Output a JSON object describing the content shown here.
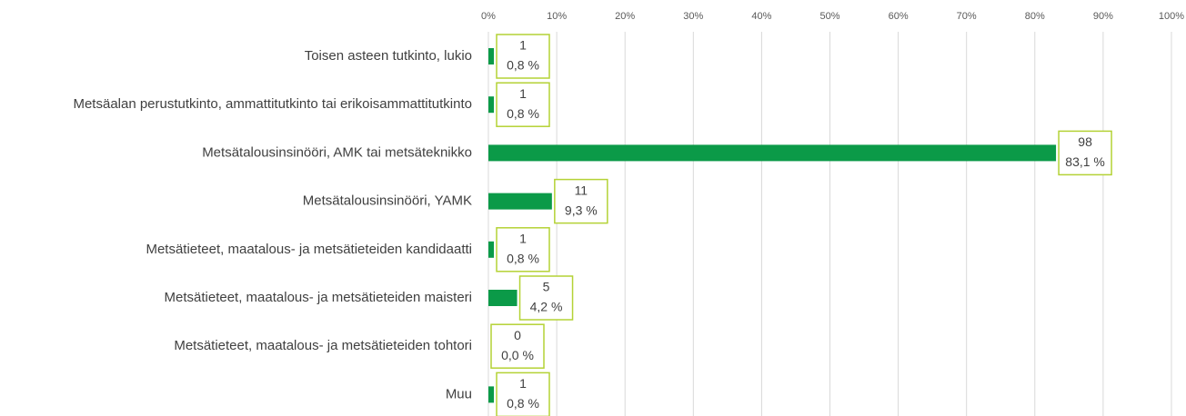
{
  "chart_data": {
    "type": "bar",
    "orientation": "horizontal",
    "categories": [
      "Toisen asteen tutkinto, lukio",
      "Metsäalan perustutkinto, ammattitutkinto tai erikoisammattitutkinto",
      "Metsätalousinsinööri, AMK tai metsäteknikko",
      "Metsätalousinsinööri, YAMK",
      "Metsätieteet, maatalous- ja metsätieteiden kandidaatti",
      "Metsätieteet, maatalous- ja metsätieteiden maisteri",
      "Metsätieteet, maatalous- ja metsätieteiden tohtori",
      "Muu"
    ],
    "values": [
      0.8,
      0.8,
      83.1,
      9.3,
      0.8,
      4.2,
      0,
      0.8
    ],
    "value_labels": [
      "0,8 %",
      "0,8 %",
      "83,1 %",
      "9,3 %",
      "0,8 %",
      "4,2 %",
      "0,0 %",
      "0,8 %"
    ],
    "counts": [
      1,
      1,
      98,
      11,
      1,
      5,
      0,
      1
    ],
    "color": "#0b9a48",
    "xlim": [
      0,
      100
    ],
    "xticks": [
      {
        "value": 0,
        "label": "0%"
      },
      {
        "value": 10,
        "label": "10%"
      },
      {
        "value": 20,
        "label": "20%"
      },
      {
        "value": 30,
        "label": "30%"
      },
      {
        "value": 40,
        "label": "40%"
      },
      {
        "value": 50,
        "label": "50%"
      },
      {
        "value": 60,
        "label": "60%"
      },
      {
        "value": 70,
        "label": "70%"
      },
      {
        "value": 80,
        "label": "80%"
      },
      {
        "value": 90,
        "label": "90%"
      },
      {
        "value": 100,
        "label": "100%"
      }
    ],
    "grid": true
  }
}
